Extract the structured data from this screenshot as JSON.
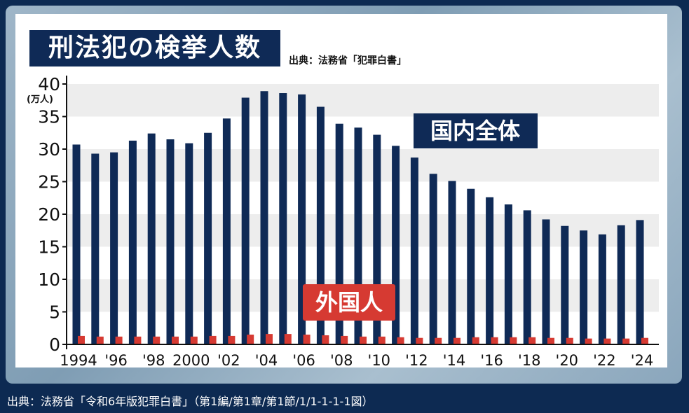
{
  "title": "刑法犯の検挙人数",
  "source_top": "出典：法務省「犯罪白書」",
  "source_bottom": "出典：法務省「令和6年版犯罪白書」（第1編/第1章/第1節/1/1-1-1-1図）",
  "colors": {
    "domestic": "#0f2a56",
    "foreign": "#d63a32",
    "band": "#ededed",
    "background": "#0d2a52"
  },
  "chart_data": {
    "type": "bar",
    "title": "刑法犯の検挙人数",
    "ylabel": "(万人)",
    "ylim": [
      0,
      40
    ],
    "yticks": [
      "0",
      "5",
      "10",
      "15",
      "20",
      "25",
      "30",
      "35",
      "40"
    ],
    "grid": "alternating horizontal bands",
    "categories": [
      "1994",
      "1995",
      "1996",
      "1997",
      "1998",
      "1999",
      "2000",
      "2001",
      "2002",
      "2003",
      "2004",
      "2005",
      "2006",
      "2007",
      "2008",
      "2009",
      "2010",
      "2011",
      "2012",
      "2013",
      "2014",
      "2015",
      "2016",
      "2017",
      "2018",
      "2019",
      "2020",
      "2021",
      "2022",
      "2023",
      "2024"
    ],
    "xtick_labels": [
      "1994",
      "",
      "'96",
      "",
      "'98",
      "",
      "2000",
      "",
      "'02",
      "",
      "'04",
      "",
      "'06",
      "",
      "'08",
      "",
      "'10",
      "",
      "'12",
      "",
      "'14",
      "",
      "'16",
      "",
      "'18",
      "",
      "'20",
      "",
      "'22",
      "",
      "'24"
    ],
    "series": [
      {
        "name": "国内全体",
        "values": [
          30.7,
          29.3,
          29.5,
          31.3,
          32.4,
          31.5,
          30.9,
          32.5,
          34.7,
          37.9,
          38.9,
          38.6,
          38.4,
          36.5,
          33.9,
          33.3,
          32.2,
          30.5,
          28.7,
          26.2,
          25.1,
          23.9,
          22.6,
          21.5,
          20.6,
          19.2,
          18.2,
          17.5,
          16.9,
          18.3,
          19.1
        ]
      },
      {
        "name": "外国人",
        "values": [
          1.3,
          1.2,
          1.2,
          1.2,
          1.2,
          1.2,
          1.2,
          1.3,
          1.3,
          1.5,
          1.6,
          1.6,
          1.5,
          1.4,
          1.3,
          1.2,
          1.2,
          1.1,
          1.0,
          1.0,
          1.0,
          1.1,
          1.1,
          1.1,
          1.1,
          1.0,
          1.0,
          0.9,
          0.9,
          0.9,
          1.0
        ]
      }
    ]
  }
}
